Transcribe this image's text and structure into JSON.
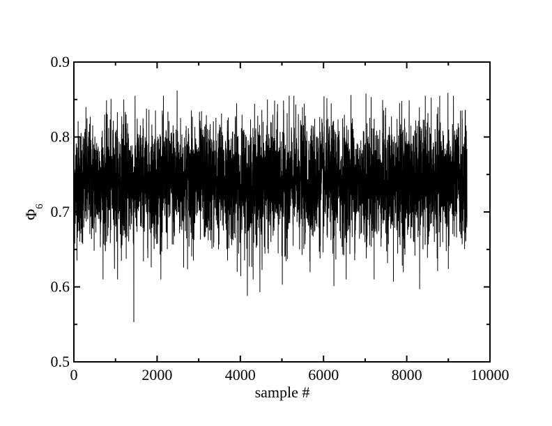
{
  "chart_data": {
    "type": "line",
    "title": "",
    "xlabel": "sample #",
    "ylabel_symbol": "Φ",
    "ylabel_subscript": "6",
    "xlim": [
      0,
      10000
    ],
    "ylim": [
      0.5,
      0.9
    ],
    "x_ticks": [
      "0",
      "2000",
      "4000",
      "6000",
      "8000",
      "10000"
    ],
    "x_tick_values": [
      0,
      2000,
      4000,
      6000,
      8000,
      10000
    ],
    "y_ticks": [
      "0.5",
      "0.6",
      "0.7",
      "0.8",
      "0.9"
    ],
    "y_tick_values": [
      0.5,
      0.6,
      0.7,
      0.8,
      0.9
    ],
    "grid": false,
    "legend": "none",
    "series": [
      {
        "n_samples": 9450,
        "mean": 0.74,
        "typical_range": [
          0.68,
          0.8
        ],
        "minimum": {
          "x": 1440,
          "y": 0.553
        },
        "maximum": {
          "x": 2480,
          "y": 0.862
        },
        "notable_peaks": [
          {
            "x": 2480,
            "y": 0.862
          },
          {
            "x": 7020,
            "y": 0.858
          },
          {
            "x": 8990,
            "y": 0.859
          },
          {
            "x": 6660,
            "y": 0.856
          },
          {
            "x": 1200,
            "y": 0.85
          },
          {
            "x": 7880,
            "y": 0.848
          }
        ],
        "notable_dips": [
          {
            "x": 1440,
            "y": 0.553
          },
          {
            "x": 4170,
            "y": 0.588
          },
          {
            "x": 8310,
            "y": 0.597
          },
          {
            "x": 4470,
            "y": 0.593
          },
          {
            "x": 5010,
            "y": 0.603
          },
          {
            "x": 6250,
            "y": 0.601
          },
          {
            "x": 7680,
            "y": 0.607
          },
          {
            "x": 9000,
            "y": 0.624
          }
        ]
      }
    ]
  }
}
